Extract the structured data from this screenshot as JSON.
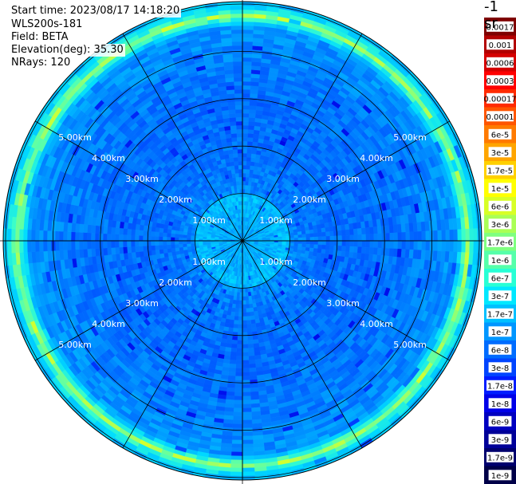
{
  "info": {
    "start_time": "Start time: 2023/08/17 14:18:20",
    "instrument": "WLS200s-181",
    "field": "Field: BETA",
    "elevation": "Elevation(deg): 35.30",
    "nrays": "NRays: 120"
  },
  "chart_data": {
    "type": "heatmap",
    "title": "",
    "projection": "polar",
    "range_rings": [
      {
        "km": 1.0,
        "label": "1.00km"
      },
      {
        "km": 2.0,
        "label": "2.00km"
      },
      {
        "km": 3.0,
        "label": "3.00km"
      },
      {
        "km": 4.0,
        "label": "4.00km"
      },
      {
        "km": 5.0,
        "label": "5.00km"
      }
    ],
    "max_range_km": 5.05,
    "radial_lines_deg": [
      0,
      30,
      60,
      90,
      120,
      150,
      180,
      210,
      240,
      270,
      300,
      330
    ],
    "field": "BETA",
    "elevation_deg": 35.3,
    "nrays": 120,
    "colorbar": {
      "unit": "-1 sr",
      "labels": [
        "0.0017",
        "0.001",
        "0.0006",
        "0.0003",
        "0.00017",
        "0.0001",
        "6e-5",
        "3e-5",
        "1.7e-5",
        "1e-5",
        "6e-6",
        "3e-6",
        "1.7e-6",
        "1e-6",
        "6e-7",
        "3e-7",
        "1.7e-7",
        "1e-7",
        "6e-8",
        "3e-8",
        "1.7e-8",
        "1e-8",
        "6e-9",
        "3e-9",
        "1.7e-9",
        "1e-9"
      ],
      "colors": [
        "#7f0000",
        "#b20000",
        "#d40000",
        "#ff0000",
        "#ff2a00",
        "#ff5500",
        "#ff7a00",
        "#ffa500",
        "#ffd000",
        "#ffff00",
        "#d8ff26",
        "#aaff55",
        "#7fff7f",
        "#55ffaa",
        "#28ffd5",
        "#00e8ff",
        "#00c0ff",
        "#0096ff",
        "#006cff",
        "#0044ff",
        "#001cff",
        "#0000e8",
        "#0000c0",
        "#000098",
        "#00006e",
        "#000048"
      ]
    },
    "radial_profile": {
      "range_km": [
        0.0,
        0.5,
        0.95,
        1.05,
        1.4,
        2.0,
        2.8,
        3.5,
        4.2,
        4.5,
        4.6,
        4.75,
        4.9,
        5.05
      ],
      "log10_beta": [
        -6.6,
        -6.6,
        -6.4,
        -6.9,
        -7.05,
        -7.15,
        -7.15,
        -7.05,
        -6.9,
        -6.8,
        -6.2,
        -5.2,
        -6.0,
        -6.6
      ]
    }
  }
}
